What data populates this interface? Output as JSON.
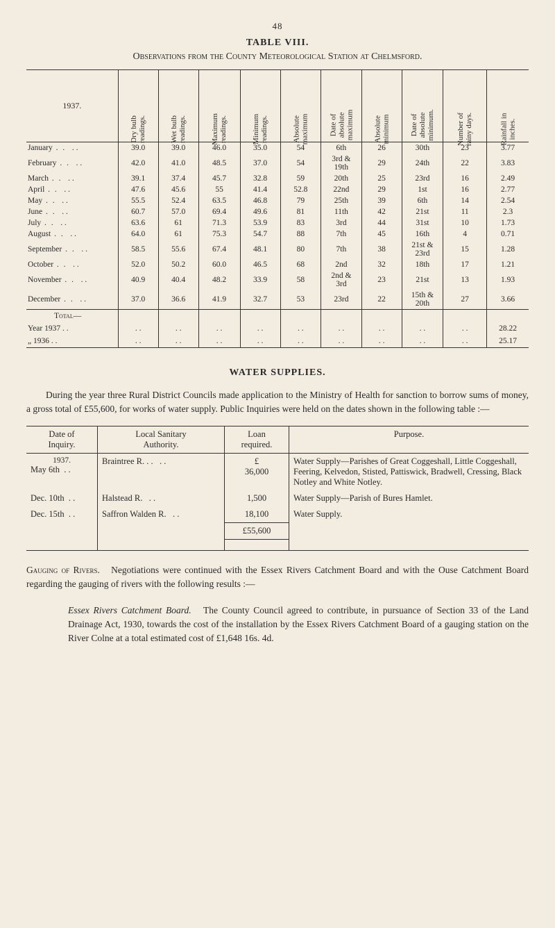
{
  "page_number": "48",
  "table8": {
    "label": "TABLE VIII.",
    "caption_left": "Observations",
    "caption_mid": "from the",
    "caption_county": "County",
    "caption_met": "Meteorological Station at Chelmsford.",
    "year_label": "1937.",
    "columns": [
      "Dry bulb\nreadings.",
      "Wet bulb\nreadings.",
      "Maximum\nreadings.",
      "Minimum\nreadings.",
      "Absolute\nmaximum",
      "Date of\nabsolute\nmaximum",
      "Absolute\nminimum",
      "Date of\nabsolute\nminimum.",
      "Number of\nrainy days.",
      "Rainfall in\ninches."
    ],
    "rows": [
      {
        "m": "January",
        "a": [
          "39.0",
          "39.0",
          "46.0",
          "35.0",
          "54",
          "6th",
          "26",
          "30th",
          "23",
          "3.77"
        ]
      },
      {
        "m": "February",
        "a": [
          "42.0",
          "41.0",
          "48.5",
          "37.0",
          "54",
          "3rd &\n19th",
          "29",
          "24th",
          "22",
          "3.83"
        ]
      },
      {
        "m": "March",
        "a": [
          "39.1",
          "37.4",
          "45.7",
          "32.8",
          "59",
          "20th",
          "25",
          "23rd",
          "16",
          "2.49"
        ]
      },
      {
        "m": "April",
        "a": [
          "47.6",
          "45.6",
          "55",
          "41.4",
          "52.8",
          "22nd",
          "29",
          "1st",
          "16",
          "2.77"
        ]
      },
      {
        "m": "May",
        "a": [
          "55.5",
          "52.4",
          "63.5",
          "46.8",
          "79",
          "25th",
          "39",
          "6th",
          "14",
          "2.54"
        ]
      },
      {
        "m": "June",
        "a": [
          "60.7",
          "57.0",
          "69.4",
          "49.6",
          "81",
          "11th",
          "42",
          "21st",
          "11",
          "2.3"
        ]
      },
      {
        "m": "July",
        "a": [
          "63.6",
          "61",
          "71.3",
          "53.9",
          "83",
          "3rd",
          "44",
          "31st",
          "10",
          "1.73"
        ]
      },
      {
        "m": "August",
        "a": [
          "64.0",
          "61",
          "75.3",
          "54.7",
          "88",
          "7th",
          "45",
          "16th",
          "4",
          "0.71"
        ]
      },
      {
        "m": "September",
        "a": [
          "58.5",
          "55.6",
          "67.4",
          "48.1",
          "80",
          "7th",
          "38",
          "21st &\n23rd",
          "15",
          "1.28"
        ]
      },
      {
        "m": "October",
        "a": [
          "52.0",
          "50.2",
          "60.0",
          "46.5",
          "68",
          "2nd",
          "32",
          "18th",
          "17",
          "1.21"
        ]
      },
      {
        "m": "November",
        "a": [
          "40.9",
          "40.4",
          "48.2",
          "33.9",
          "58",
          "2nd &\n3rd",
          "23",
          "21st",
          "13",
          "1.93"
        ]
      },
      {
        "m": "December",
        "a": [
          "37.0",
          "36.6",
          "41.9",
          "32.7",
          "53",
          "23rd",
          "22",
          "15th &\n20th",
          "27",
          "3.66"
        ]
      }
    ],
    "total_label": "Total—",
    "year_rows": [
      {
        "m": "Year  1937 . .",
        "last": "28.22"
      },
      {
        "m": "  „    1936 . .",
        "last": "25.17"
      }
    ]
  },
  "water": {
    "heading": "WATER SUPPLIES.",
    "para": "During the year three Rural District Councils made application to the Ministry of Health for sanction to borrow sums of money, a gross total of £55,600, for works of water supply. Public Inquiries were held on the dates shown in the following table :—",
    "table": {
      "headers": [
        "Date of\nInquiry.",
        "Local Sanitary\nAuthority.",
        "Loan\nrequired.",
        "Purpose."
      ],
      "year_label": "1937.",
      "rows": [
        {
          "date": "May 6th",
          "auth": "Braintree R. . .",
          "amt": "£\n36,000",
          "purpose": "Water Supply—Parishes of Great Cogges­hall, Little Coggeshall, Feering, Kelvedon, Stisted, Pattiswick, Bradwell, Cressing, Black Notley and White Notley."
        },
        {
          "date": "Dec. 10th",
          "auth": "Halstead R.",
          "amt": "1,500",
          "purpose": "Water Supply—Parish of Bures Hamlet."
        },
        {
          "date": "Dec. 15th",
          "auth": "Saffron Walden R.",
          "amt": "18,100",
          "purpose": "Water Supply."
        }
      ],
      "total": "£55,600"
    }
  },
  "rivers": {
    "p1_a": "Gauging of Rivers.",
    "p1_b": "Negotiations were continued with the Essex Rivers Catch­ment Board and with the Ouse Catchment Board regarding the gauging of rivers with the following results :—",
    "p2_a": "Essex Rivers Catchment Board.",
    "p2_b": "The County Council agreed to contribute, in pursuance of Section 33 of the Land Drainage Act, 1930, towards the cost of the installation by the Essex Rivers Catchment Board of a gauging station on the River Colne at a total estimated cost of £1,648 16s. 4d."
  },
  "colors": {
    "bg": "#f2ece1",
    "text": "#2a2a2a",
    "rule": "#333333"
  }
}
